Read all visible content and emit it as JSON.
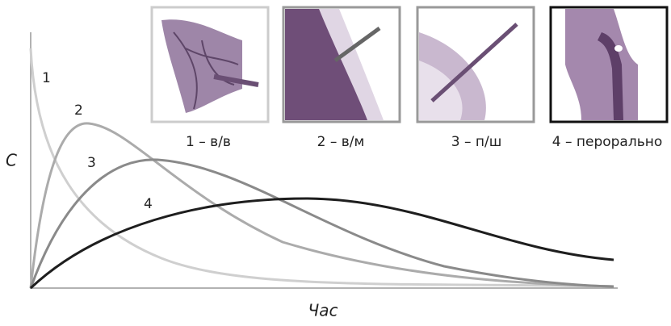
{
  "axes": {
    "y_label": "C",
    "x_label": "Час"
  },
  "curves": [
    {
      "label": "1"
    },
    {
      "label": "2"
    },
    {
      "label": "3"
    },
    {
      "label": "4"
    }
  ],
  "panels": [
    {
      "caption": "1 – в/в"
    },
    {
      "caption": "2 – в/м"
    },
    {
      "caption": "3 – п/ш"
    },
    {
      "caption": "4 – перорально"
    }
  ]
}
